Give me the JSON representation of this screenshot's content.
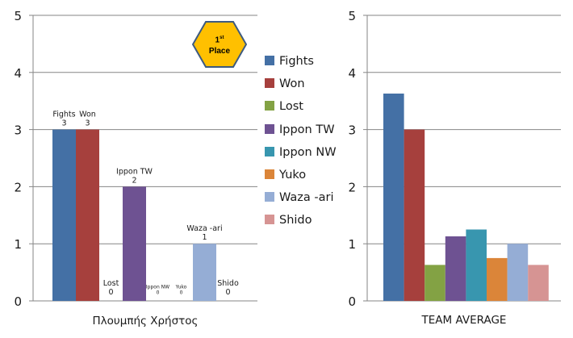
{
  "colors": {
    "Fights": "#4470A5",
    "Won": "#A6403D",
    "Lost": "#83A244",
    "Ippon TW": "#6E5292",
    "Ippon NW": "#3896AF",
    "Yuko": "#DB8539",
    "Waza -ari": "#95ADD5",
    "Shido": "#D69493",
    "axis": "#868686",
    "grid": "#868686"
  },
  "legend": [
    "Fights",
    "Won",
    "Lost",
    "Ippon TW",
    "Ippon NW",
    "Yuko",
    "Waza -ari",
    "Shido"
  ],
  "badge": {
    "place": "1",
    "suffix": "st",
    "label": "Place"
  },
  "chart_data": [
    {
      "type": "bar",
      "title": "",
      "xlabel": "Πλουμπής Χρήστος",
      "ylabel": "",
      "ylim": [
        0,
        5
      ],
      "yticks": [
        "0",
        "1",
        "2",
        "3",
        "4",
        "5"
      ],
      "grid": true,
      "categories": [
        "Fights",
        "Won",
        "Lost",
        "Ippon TW",
        "Ippon NW",
        "Yuko",
        "Waza -ari",
        "Shido"
      ],
      "values": [
        3,
        3,
        0,
        2,
        0,
        0,
        1,
        0
      ],
      "data_labels": [
        {
          "name": "Fights",
          "value": "3"
        },
        {
          "name": "Won",
          "value": "3"
        },
        {
          "name": "Lost",
          "value": "0"
        },
        {
          "name": "Ippon TW",
          "value": "2"
        },
        {
          "name": "Ippon NW",
          "value": "0"
        },
        {
          "name": "Yuko",
          "value": "0"
        },
        {
          "name": "Waza -ari",
          "value": "1"
        },
        {
          "name": "Shido",
          "value": "0"
        }
      ]
    },
    {
      "type": "bar",
      "title": "",
      "xlabel": "TEAM AVERAGE",
      "ylabel": "",
      "ylim": [
        0,
        5
      ],
      "yticks": [
        "0",
        "1",
        "2",
        "3",
        "4",
        "5"
      ],
      "grid": true,
      "categories": [
        "Fights",
        "Won",
        "Lost",
        "Ippon TW",
        "Ippon NW",
        "Yuko",
        "Waza -ari",
        "Shido"
      ],
      "values": [
        3.63,
        3.0,
        0.63,
        1.13,
        1.25,
        0.75,
        1.0,
        0.63
      ]
    }
  ]
}
